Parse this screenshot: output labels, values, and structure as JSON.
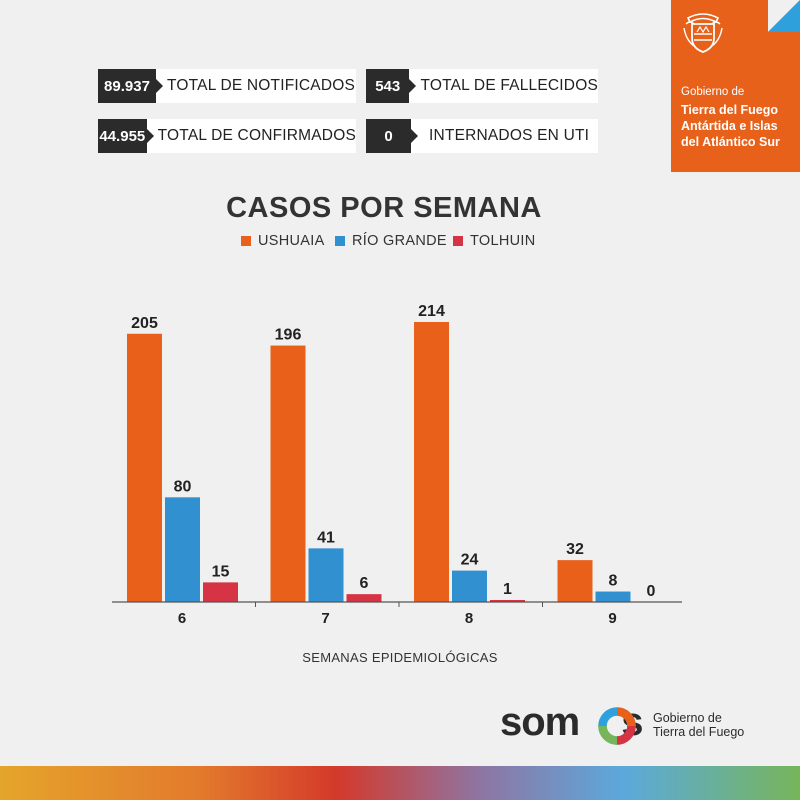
{
  "stats": [
    {
      "value": "89.937",
      "label": "TOTAL DE NOTIFICADOS"
    },
    {
      "value": "44.955",
      "label": "TOTAL DE CONFIRMADOS"
    },
    {
      "value": "543",
      "label": "TOTAL DE FALLECIDOS"
    },
    {
      "value": "0",
      "label": "INTERNADOS EN UTI"
    }
  ],
  "government": {
    "line1": "Gobierno de",
    "line2": "Tierra del Fuego Antártida e Islas del Atlántico Sur"
  },
  "colors": {
    "ushuaia": "#e8601a",
    "rio_grande": "#3090d0",
    "tolhuin": "#d63344",
    "dark": "#2b2b2b",
    "orange_panel": "#e8611a"
  },
  "chart_data": {
    "type": "bar",
    "title": "CASOS POR SEMANA",
    "xlabel": "SEMANAS EPIDEMIOLÓGICAS",
    "ylabel": "",
    "categories": [
      "6",
      "7",
      "8",
      "9"
    ],
    "series": [
      {
        "name": "USHUAIA",
        "values": [
          205,
          196,
          214,
          32
        ]
      },
      {
        "name": "RÍO GRANDE",
        "values": [
          80,
          41,
          24,
          8
        ]
      },
      {
        "name": "TOLHUIN",
        "values": [
          15,
          6,
          1,
          0
        ]
      }
    ],
    "ylim": [
      0,
      214
    ],
    "grid": false,
    "legend": "top-center"
  },
  "footer": {
    "brand": "somos",
    "sub_line1": "Gobierno de",
    "sub_line2": "Tierra del Fuego"
  }
}
